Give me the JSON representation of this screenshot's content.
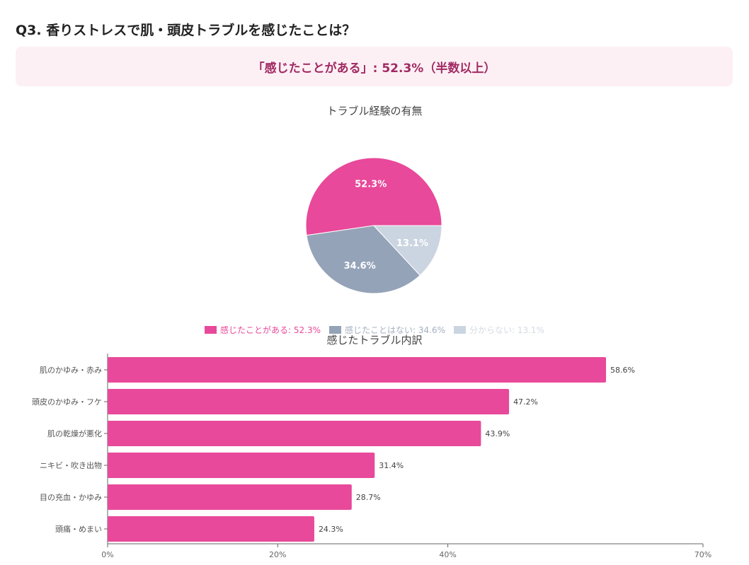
{
  "title": "Q3. 香りストレスで肌・頭皮トラブルを感じたことは？",
  "banner": "「感じたことがある」: 52.3%（半数以上）",
  "chart_data": [
    {
      "type": "pie",
      "title": "トラブル経験の有無",
      "labels": [
        "感じたことがある",
        "感じたことはない",
        "分からない"
      ],
      "values": [
        52.3,
        34.6,
        13.1
      ],
      "colors": [
        "#e8499a",
        "#94a3b8",
        "#cbd5e1"
      ],
      "legend_labels": [
        "感じたことがある: 52.3%",
        "感じたことはない: 34.6%",
        "分からない: 13.1%"
      ],
      "data_labels": [
        "52.3%",
        "34.6%",
        "13.1%"
      ],
      "legend_position": "bottom"
    },
    {
      "type": "bar",
      "orientation": "horizontal",
      "title": "感じたトラブル内訳",
      "categories": [
        "肌のかゆみ・赤み",
        "頭皮のかゆみ・フケ",
        "肌の乾燥が悪化",
        "ニキビ・吹き出物",
        "目の充血・かゆみ",
        "頭痛・めまい"
      ],
      "values": [
        58.6,
        47.2,
        43.9,
        31.4,
        28.7,
        24.3
      ],
      "data_labels": [
        "58.6%",
        "47.2%",
        "43.9%",
        "31.4%",
        "28.7%",
        "24.3%"
      ],
      "xlim": [
        0,
        70
      ],
      "xticks": [
        "0%",
        "20%",
        "40%",
        "70%"
      ],
      "xtick_values": [
        0,
        20,
        40,
        70
      ],
      "color": "#e8499a",
      "grid": false
    }
  ]
}
